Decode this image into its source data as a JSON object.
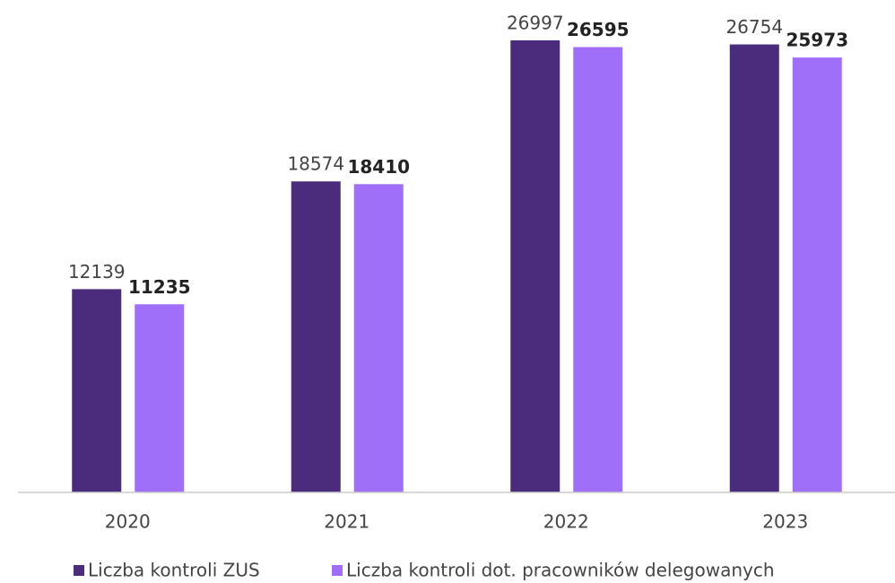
{
  "chart_data": {
    "type": "bar",
    "categories": [
      "2020",
      "2021",
      "2022",
      "2023"
    ],
    "series": [
      {
        "name": "Liczba kontroli ZUS",
        "color": "#4b2b7c",
        "values": [
          12139,
          18574,
          26997,
          26754
        ]
      },
      {
        "name": "Liczba kontroli dot. pracowników delegowanych",
        "color": "#a06ffa",
        "values": [
          11235,
          18410,
          26595,
          25973
        ]
      }
    ]
  }
}
